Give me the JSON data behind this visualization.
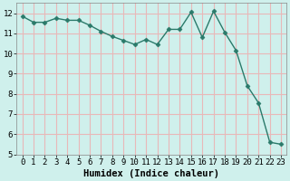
{
  "xlabel": "Humidex (Indice chaleur)",
  "x": [
    0,
    1,
    2,
    3,
    4,
    5,
    6,
    7,
    8,
    9,
    10,
    11,
    12,
    13,
    14,
    15,
    16,
    17,
    18,
    19,
    20,
    21,
    22,
    23
  ],
  "y": [
    11.85,
    11.55,
    11.55,
    11.75,
    11.65,
    11.65,
    11.4,
    11.1,
    10.85,
    10.65,
    10.45,
    10.7,
    10.45,
    11.2,
    11.2,
    12.05,
    10.8,
    12.1,
    11.05,
    10.15,
    8.4,
    7.55,
    5.6,
    5.5
  ],
  "line_color": "#2a7a6a",
  "marker": "D",
  "markersize": 2.5,
  "linewidth": 1.0,
  "bg_color": "#cff0ec",
  "plot_bg_color": "#cff0ec",
  "grid_color": "#e8b8b8",
  "xlim": [
    -0.5,
    23.5
  ],
  "ylim": [
    5,
    12.5
  ],
  "yticks": [
    5,
    6,
    7,
    8,
    9,
    10,
    11,
    12
  ],
  "xticks": [
    0,
    1,
    2,
    3,
    4,
    5,
    6,
    7,
    8,
    9,
    10,
    11,
    12,
    13,
    14,
    15,
    16,
    17,
    18,
    19,
    20,
    21,
    22,
    23
  ],
  "tick_fontsize": 6.5,
  "label_fontsize": 7.5,
  "spine_color": "#888888"
}
